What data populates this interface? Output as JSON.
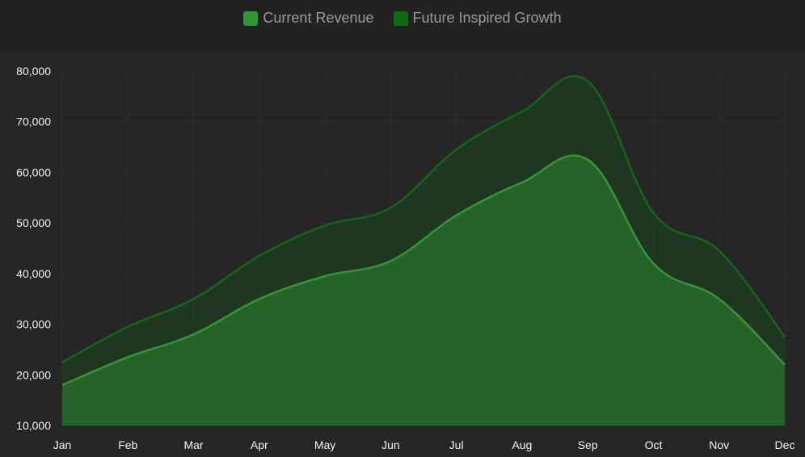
{
  "legend": {
    "items": [
      {
        "label": "Current Revenue",
        "color": "#2e9a32"
      },
      {
        "label": "Future Inspired Growth",
        "color": "#0d6b12"
      }
    ]
  },
  "chart_data": {
    "type": "area",
    "categories": [
      "Jan",
      "Feb",
      "Mar",
      "Apr",
      "May",
      "Jun",
      "Jul",
      "Aug",
      "Sep",
      "Oct",
      "Nov",
      "Dec"
    ],
    "series": [
      {
        "name": "Current Revenue",
        "values": [
          18000,
          23500,
          28000,
          35000,
          39500,
          42500,
          51500,
          58000,
          62500,
          42000,
          35000,
          22000
        ],
        "color": "#2e9a32"
      },
      {
        "name": "Future Inspired Growth",
        "values": [
          22500,
          29500,
          35000,
          43500,
          49500,
          53000,
          64500,
          72000,
          78000,
          52000,
          44500,
          27500
        ],
        "color": "#0d6b12"
      }
    ],
    "yticks": [
      "10,000",
      "20,000",
      "30,000",
      "40,000",
      "50,000",
      "60,000",
      "70,000",
      "80,000"
    ],
    "ylim": [
      10000,
      80000
    ],
    "stacked": false,
    "grid": true,
    "legend_position": "top-center"
  }
}
